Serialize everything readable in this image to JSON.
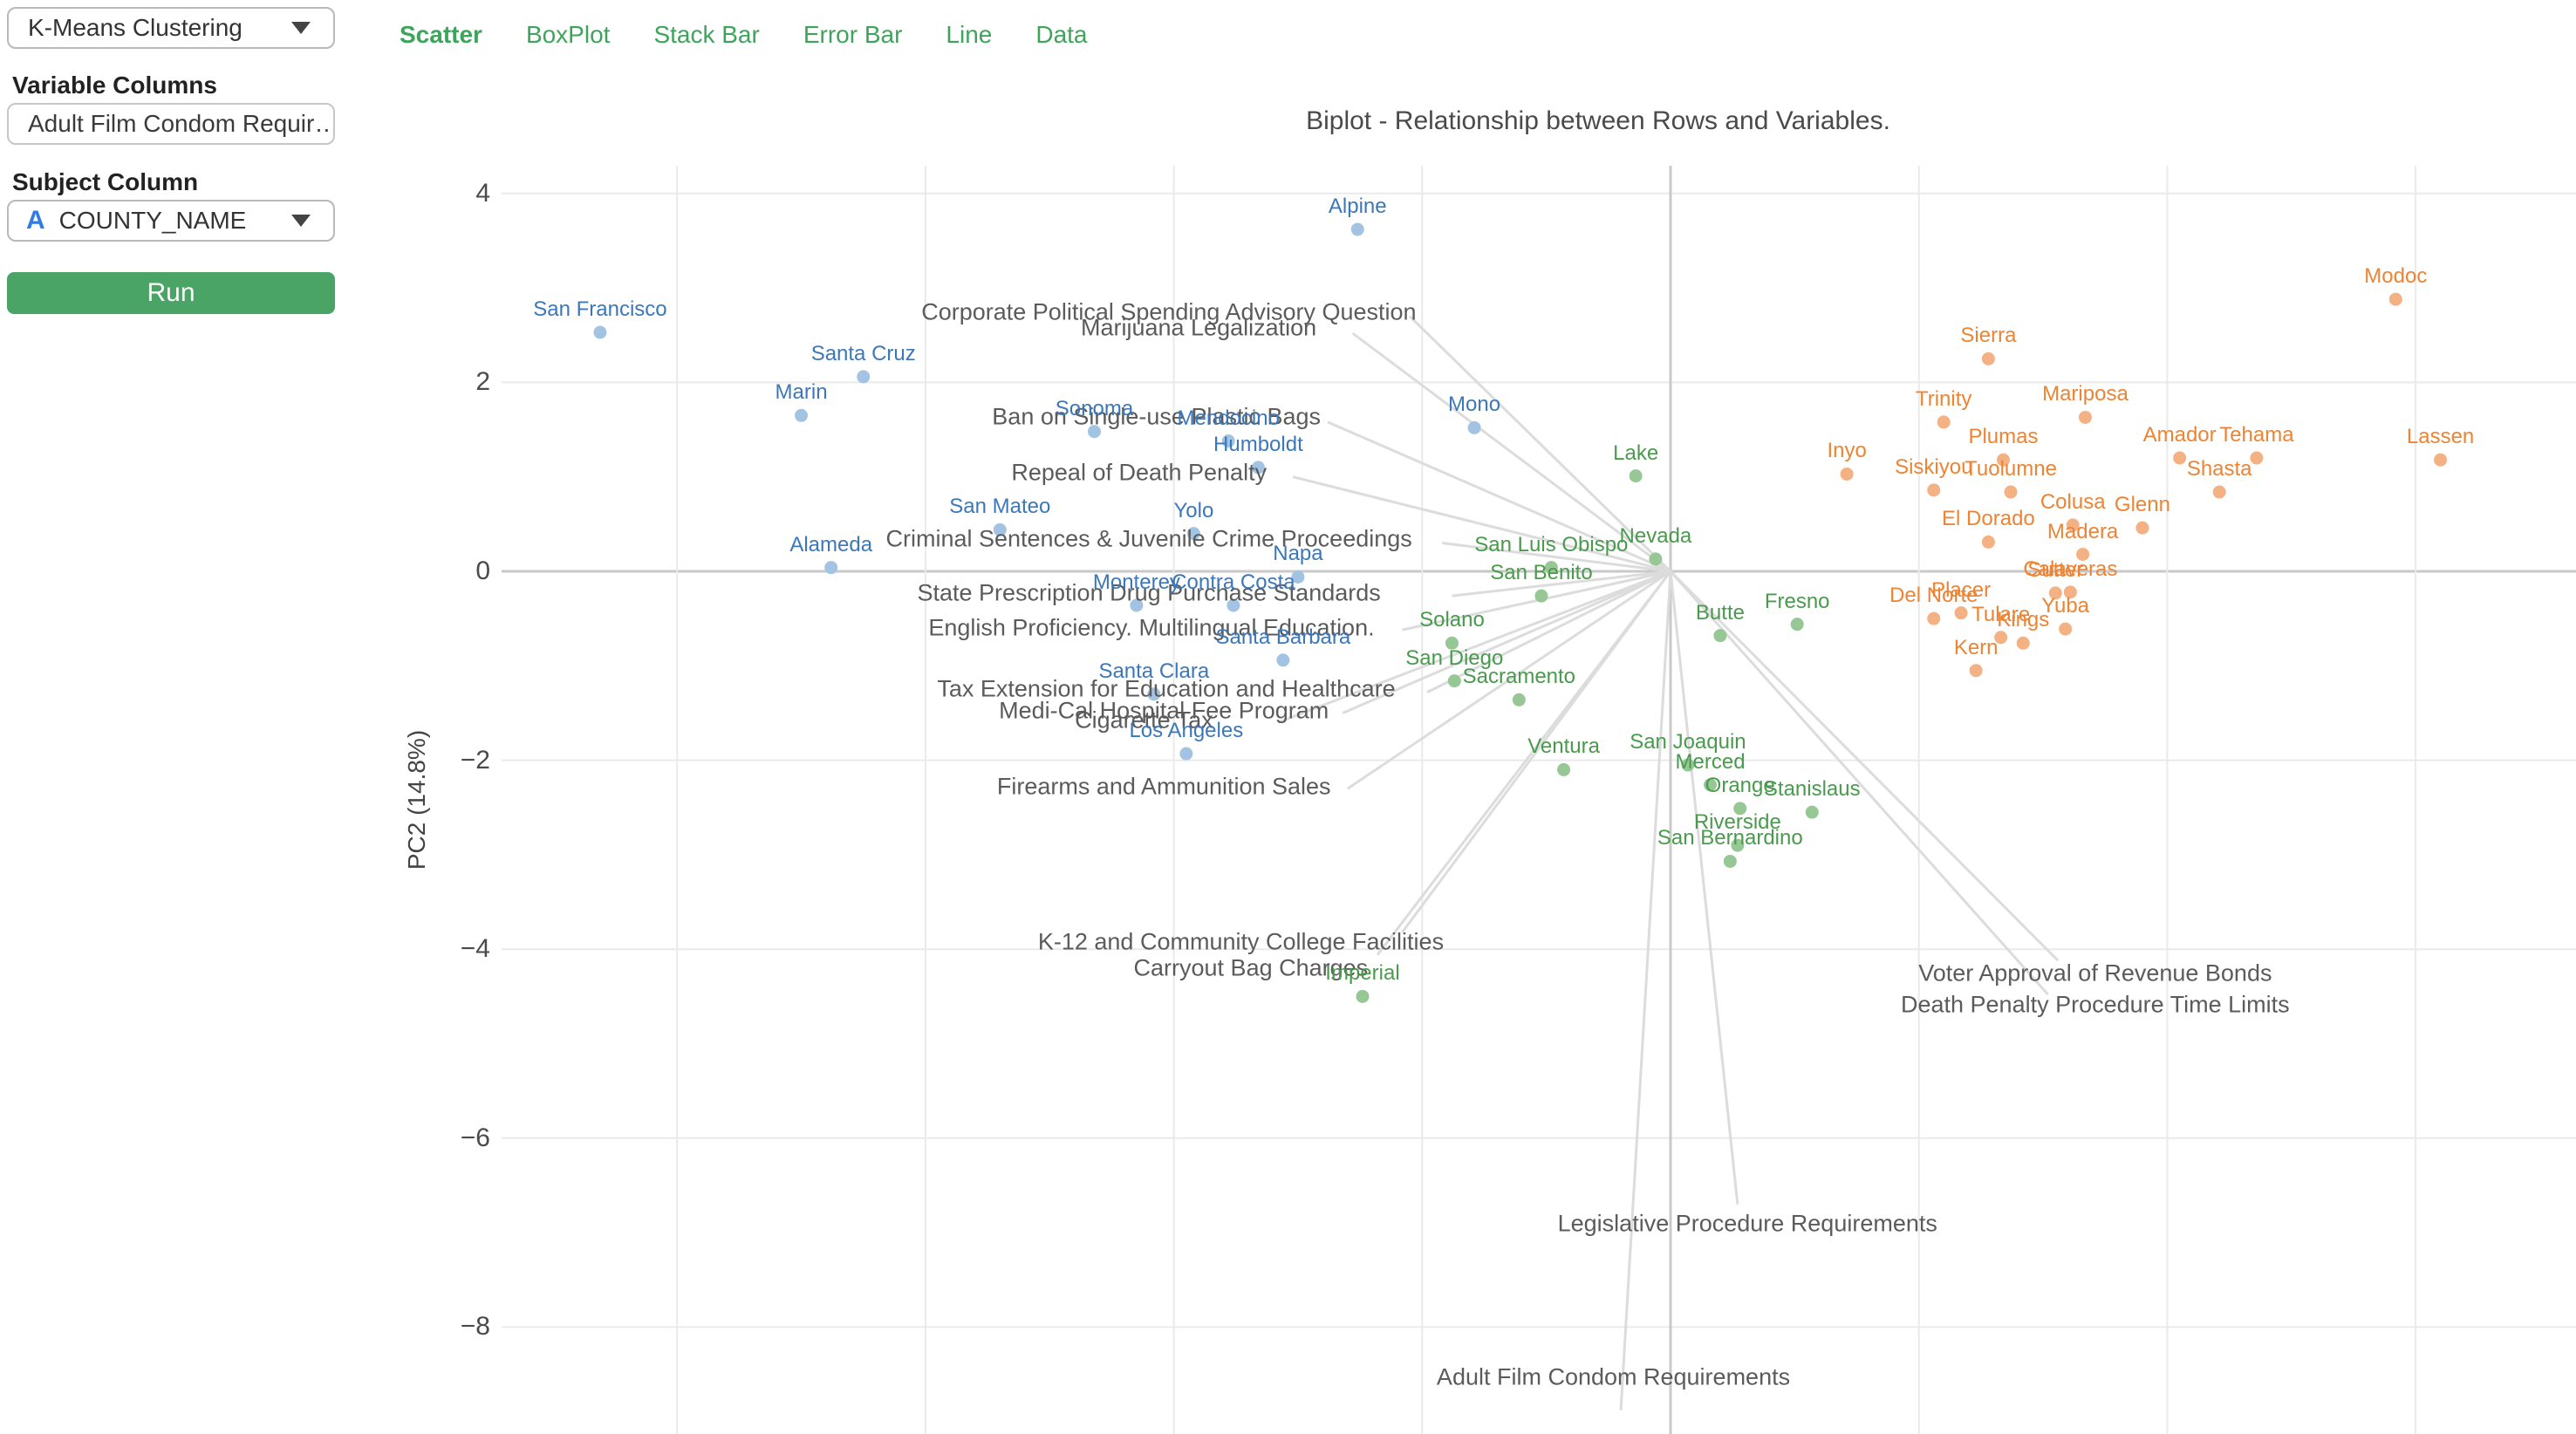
{
  "sidebar": {
    "algorithm_dropdown": {
      "value": "K-Means Clustering"
    },
    "variable_columns": {
      "label": "Variable Columns",
      "value": "Adult Film Condom Requir…"
    },
    "subject_column": {
      "label": "Subject Column",
      "value": "COUNTY_NAME",
      "icon": "A"
    },
    "run_button": "Run"
  },
  "tabs": {
    "color": "#3fa45b",
    "items": [
      {
        "label": "Scatter",
        "active": true
      },
      {
        "label": "BoxPlot",
        "active": false
      },
      {
        "label": "Stack Bar",
        "active": false
      },
      {
        "label": "Error Bar",
        "active": false
      },
      {
        "label": "Line",
        "active": false
      },
      {
        "label": "Data",
        "active": false
      }
    ]
  },
  "chart_data": {
    "type": "scatter",
    "title": "Biplot - Relationship between Rows and Variables.",
    "ylabel": "PC2 (14.8%)",
    "y_ticks": [
      4,
      2,
      0,
      -2,
      -4,
      -6,
      -8
    ],
    "x_gridlines": [
      -4,
      -3,
      -2,
      -1,
      0,
      1,
      2,
      3
    ],
    "ylim": [
      -9.1,
      4.3
    ],
    "grid": true,
    "colors": {
      "gridline": "#eaeaea",
      "zero_line": "#c9c9c9",
      "tick_text": "#4a4a4a",
      "vector_line": "#dcdcdc",
      "vector_text": "#5b5b5b"
    },
    "series": [
      {
        "name": "cluster-blue",
        "label_color": "#3c78b9",
        "dot_color": "#a3c3e3",
        "points": [
          {
            "label": "San Francisco",
            "x": -4.31,
            "y": 2.53
          },
          {
            "label": "Santa Cruz",
            "x": -3.25,
            "y": 2.06
          },
          {
            "label": "Marin",
            "x": -3.5,
            "y": 1.65
          },
          {
            "label": "Sonoma",
            "x": -2.32,
            "y": 1.48
          },
          {
            "label": "Mendocino",
            "x": -1.78,
            "y": 1.38
          },
          {
            "label": "Humboldt",
            "x": -1.66,
            "y": 1.1
          },
          {
            "label": "Mono",
            "x": -0.79,
            "y": 1.52
          },
          {
            "label": "Alpine",
            "x": -1.26,
            "y": 3.62
          },
          {
            "label": "San Mateo",
            "x": -2.7,
            "y": 0.44
          },
          {
            "label": "Yolo",
            "x": -1.92,
            "y": 0.4
          },
          {
            "label": "Alameda",
            "x": -3.38,
            "y": 0.04
          },
          {
            "label": "Napa",
            "x": -1.5,
            "y": -0.06
          },
          {
            "label": "Monterey",
            "x": -2.15,
            "y": -0.36
          },
          {
            "label": "Contra Costa",
            "x": -1.76,
            "y": -0.36
          },
          {
            "label": "Santa Barbara",
            "x": -1.56,
            "y": -0.94
          },
          {
            "label": "Santa Clara",
            "x": -2.08,
            "y": -1.3
          },
          {
            "label": "Los Angeles",
            "x": -1.95,
            "y": -1.93
          }
        ]
      },
      {
        "name": "cluster-green",
        "label_color": "#4a9a4e",
        "dot_color": "#97c795",
        "points": [
          {
            "label": "Lake",
            "x": -0.14,
            "y": 1.01
          },
          {
            "label": "Nevada",
            "x": -0.06,
            "y": 0.13
          },
          {
            "label": "San Luis Obispo",
            "x": -0.48,
            "y": 0.04
          },
          {
            "label": "San Benito",
            "x": -0.52,
            "y": -0.26
          },
          {
            "label": "Solano",
            "x": -0.88,
            "y": -0.76
          },
          {
            "label": "Butte",
            "x": 0.2,
            "y": -0.68
          },
          {
            "label": "Fresno",
            "x": 0.51,
            "y": -0.56
          },
          {
            "label": "San Diego",
            "x": -0.87,
            "y": -1.16
          },
          {
            "label": "Sacramento",
            "x": -0.61,
            "y": -1.36
          },
          {
            "label": "Ventura",
            "x": -0.43,
            "y": -2.1
          },
          {
            "label": "San Joaquin",
            "x": 0.07,
            "y": -2.05
          },
          {
            "label": "Merced",
            "x": 0.16,
            "y": -2.26
          },
          {
            "label": "Orange",
            "x": 0.28,
            "y": -2.51
          },
          {
            "label": "Stanislaus",
            "x": 0.57,
            "y": -2.55
          },
          {
            "label": "Riverside",
            "x": 0.27,
            "y": -2.9
          },
          {
            "label": "San Bernardino",
            "x": 0.24,
            "y": -3.07
          },
          {
            "label": "Imperial",
            "x": -1.24,
            "y": -4.5
          }
        ]
      },
      {
        "name": "cluster-orange",
        "label_color": "#ed8434",
        "dot_color": "#f4b183",
        "points": [
          {
            "label": "Modoc",
            "x": 2.92,
            "y": 2.88
          },
          {
            "label": "Sierra",
            "x": 1.28,
            "y": 2.25
          },
          {
            "label": "Trinity",
            "x": 1.1,
            "y": 1.58
          },
          {
            "label": "Mariposa",
            "x": 1.67,
            "y": 1.63
          },
          {
            "label": "Plumas",
            "x": 1.34,
            "y": 1.18
          },
          {
            "label": "Amador",
            "x": 2.05,
            "y": 1.2
          },
          {
            "label": "Tehama",
            "x": 2.36,
            "y": 1.2
          },
          {
            "label": "Lassen",
            "x": 3.1,
            "y": 1.18
          },
          {
            "label": "Inyo",
            "x": 0.71,
            "y": 1.03
          },
          {
            "label": "Siskiyou",
            "x": 1.06,
            "y": 0.86
          },
          {
            "label": "Tuolumne",
            "x": 1.37,
            "y": 0.84
          },
          {
            "label": "Shasta",
            "x": 2.21,
            "y": 0.84
          },
          {
            "label": "El Dorado",
            "x": 1.28,
            "y": 0.31
          },
          {
            "label": "Colusa",
            "x": 1.62,
            "y": 0.49
          },
          {
            "label": "Glenn",
            "x": 1.9,
            "y": 0.46
          },
          {
            "label": "Madera",
            "x": 1.66,
            "y": 0.18
          },
          {
            "label": "Sutter",
            "x": 1.55,
            "y": -0.23
          },
          {
            "label": "Calaveras",
            "x": 1.61,
            "y": -0.22
          },
          {
            "label": "Del Norte",
            "x": 1.06,
            "y": -0.5
          },
          {
            "label": "Placer",
            "x": 1.17,
            "y": -0.44
          },
          {
            "label": "Tulare",
            "x": 1.33,
            "y": -0.7
          },
          {
            "label": "Kings",
            "x": 1.42,
            "y": -0.76
          },
          {
            "label": "Yuba",
            "x": 1.59,
            "y": -0.61
          },
          {
            "label": "Kern",
            "x": 1.23,
            "y": -1.05
          }
        ]
      }
    ],
    "vectors": {
      "origin": [
        0,
        0
      ],
      "items": [
        {
          "label": "Corporate Political Spending Advisory Question",
          "label_pos": [
            -2.02,
            2.74
          ],
          "end": [
            -1.05,
            2.7
          ]
        },
        {
          "label": "Marijuana Legalization",
          "label_pos": [
            -1.9,
            2.58
          ],
          "end": [
            -1.28,
            2.52
          ]
        },
        {
          "label": "Ban on Single-use Plastic Bags",
          "label_pos": [
            -2.07,
            1.63
          ],
          "end": [
            -1.38,
            1.58
          ]
        },
        {
          "label": "Repeal of Death Penalty",
          "label_pos": [
            -2.14,
            1.04
          ],
          "end": [
            -1.52,
            1.0
          ]
        },
        {
          "label": "Criminal Sentences & Juvenile Crime Proceedings",
          "label_pos": [
            -2.1,
            0.34
          ],
          "end": [
            -0.92,
            0.3
          ]
        },
        {
          "label": "State Prescription Drug Purchase Standards",
          "label_pos": [
            -2.1,
            -0.23
          ],
          "end": [
            -0.88,
            -0.26
          ]
        },
        {
          "label": "English Proficiency. Multilingual Education.",
          "label_pos": [
            -2.09,
            -0.6
          ],
          "end": [
            -1.08,
            -0.62
          ]
        },
        {
          "label": "Tax Extension for Education and Healthcare",
          "label_pos": [
            -2.03,
            -1.25
          ],
          "end": [
            -0.98,
            -1.28
          ]
        },
        {
          "label": "Medi-Cal Hospital Fee Program",
          "label_pos": [
            -2.04,
            -1.48
          ],
          "end": [
            -1.32,
            -1.5
          ]
        },
        {
          "label": "Cigarette Tax",
          "label_pos": [
            -2.12,
            -1.58
          ],
          "end": [
            -1.58,
            -1.6
          ]
        },
        {
          "label": "Firearms and Ammunition Sales",
          "label_pos": [
            -2.04,
            -2.28
          ],
          "end": [
            -1.3,
            -2.3
          ]
        },
        {
          "label": "K-12 and Community College Facilities",
          "label_pos": [
            -1.73,
            -3.92
          ],
          "end": [
            -1.08,
            -3.82
          ]
        },
        {
          "label": "Carryout Bag Charges",
          "label_pos": [
            -1.69,
            -4.2
          ],
          "end": [
            -1.18,
            -4.06
          ]
        },
        {
          "label": "Voter Approval of Revenue Bonds",
          "label_pos": [
            1.71,
            -4.26
          ],
          "end": [
            1.56,
            -4.12
          ]
        },
        {
          "label": "Death Penalty Procedure Time Limits",
          "label_pos": [
            1.71,
            -4.59
          ],
          "end": [
            1.52,
            -4.48
          ]
        },
        {
          "label": "Legislative Procedure Requirements",
          "label_pos": [
            0.31,
            -6.91
          ],
          "end": [
            0.27,
            -6.7
          ]
        },
        {
          "label": "Adult Film Condom Requirements",
          "label_pos": [
            -0.23,
            -8.53
          ],
          "end": [
            -0.2,
            -8.88
          ]
        }
      ]
    }
  }
}
